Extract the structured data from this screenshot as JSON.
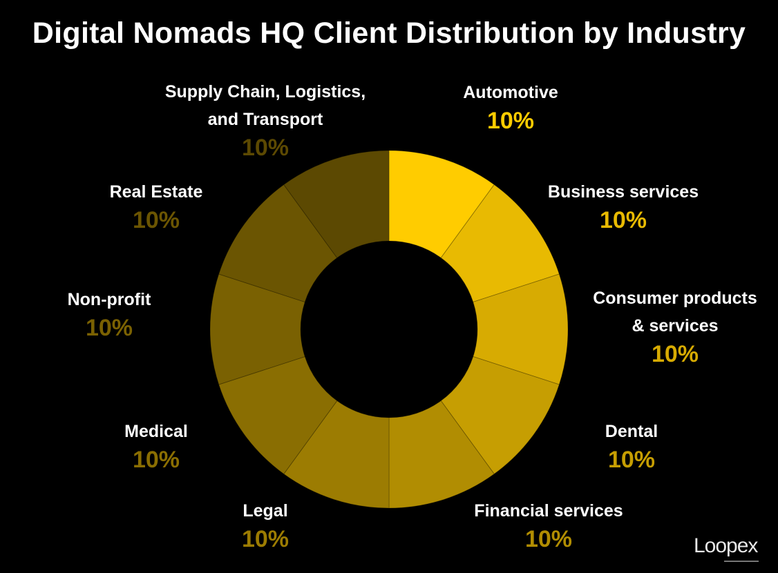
{
  "chart_data": {
    "type": "pie",
    "title": "Digital Nomads HQ Client Distribution by Industry",
    "slices": [
      {
        "label": "Automotive",
        "value": 10,
        "value_label": "10%",
        "color": "#FFCC00"
      },
      {
        "label": "Business services",
        "value": 10,
        "value_label": "10%",
        "color": "#E8BA02"
      },
      {
        "label": "Consumer products\n& services",
        "value": 10,
        "value_label": "10%",
        "color": "#D7AB02"
      },
      {
        "label": "Dental",
        "value": 10,
        "value_label": "10%",
        "color": "#C69E02"
      },
      {
        "label": "Financial services",
        "value": 10,
        "value_label": "10%",
        "color": "#B18D02"
      },
      {
        "label": "Legal",
        "value": 10,
        "value_label": "10%",
        "color": "#9C7C02"
      },
      {
        "label": "Medical",
        "value": 10,
        "value_label": "10%",
        "color": "#8A6E02"
      },
      {
        "label": "Non-profit",
        "value": 10,
        "value_label": "10%",
        "color": "#7A6102"
      },
      {
        "label": "Real Estate",
        "value": 10,
        "value_label": "10%",
        "color": "#6B5502"
      },
      {
        "label": "Supply Chain, Logistics,\nand Transport",
        "value": 10,
        "value_label": "10%",
        "color": "#5C4902"
      }
    ],
    "hole": true,
    "start_angle_deg": 0,
    "direction": "clockwise"
  },
  "logo": {
    "text": "Loopex"
  }
}
